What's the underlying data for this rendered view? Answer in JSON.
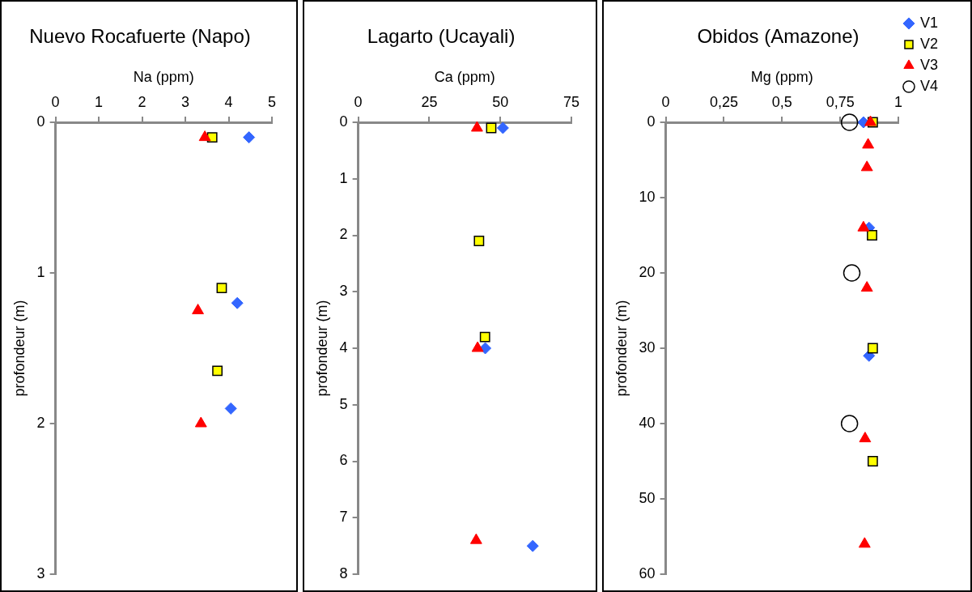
{
  "chart_data": [
    {
      "type": "scatter",
      "title": "Nuevo Rocafuerte (Napo)",
      "xlabel": "Na (ppm)",
      "ylabel": "profondeur (m)",
      "xlim": [
        0,
        5
      ],
      "xticks": [
        0,
        1,
        2,
        3,
        4,
        5
      ],
      "ylim": [
        3,
        0
      ],
      "yticks": [
        0,
        1,
        2,
        3
      ],
      "grid": false,
      "legend": false,
      "series": [
        {
          "color": "#3366ff",
          "marker": "diamond",
          "x": [
            4.47,
            4.2,
            4.05
          ],
          "values": [
            0.1,
            1.2,
            1.9
          ]
        },
        {
          "color": "#ffff00",
          "marker": "square",
          "x": [
            3.62,
            3.84,
            3.74
          ],
          "values": [
            0.1,
            1.1,
            1.65
          ]
        },
        {
          "color": "#ff0000",
          "marker": "triangle",
          "x": [
            3.45,
            3.29,
            3.36
          ],
          "values": [
            0.1,
            1.25,
            2.0
          ]
        }
      ]
    },
    {
      "type": "scatter",
      "title": "Lagarto (Ucayali)",
      "xlabel": "Ca (ppm)",
      "ylabel": "profondeur (m)",
      "xlim": [
        0,
        75
      ],
      "xticks": [
        0,
        25,
        50,
        75
      ],
      "ylim": [
        8,
        0
      ],
      "yticks": [
        0,
        1,
        2,
        3,
        4,
        5,
        6,
        7,
        8
      ],
      "grid": false,
      "legend": false,
      "series": [
        {
          "color": "#3366ff",
          "marker": "diamond",
          "x": [
            50.9,
            44.7,
            61.4
          ],
          "values": [
            0.1,
            4.0,
            7.5
          ]
        },
        {
          "color": "#ffff00",
          "marker": "square",
          "x": [
            46.8,
            42.5,
            44.6
          ],
          "values": [
            0.1,
            2.1,
            3.8
          ]
        },
        {
          "color": "#ff0000",
          "marker": "triangle",
          "x": [
            41.8,
            42.0,
            41.5
          ],
          "values": [
            0.1,
            4.0,
            7.4
          ]
        }
      ]
    },
    {
      "type": "scatter",
      "title": "Obidos (Amazone)",
      "xlabel": "Mg (ppm)",
      "ylabel": "profondeur (m)",
      "xlim": [
        0,
        1
      ],
      "xticks": [
        0,
        {
          "value": 0.25,
          "label": "0,25"
        },
        {
          "value": 0.5,
          "label": "0,5"
        },
        {
          "value": 0.75,
          "label": "0,75"
        },
        1
      ],
      "ylim": [
        60,
        0
      ],
      "yticks": [
        0,
        10,
        20,
        30,
        40,
        50,
        60
      ],
      "grid": false,
      "legend": "right",
      "series": [
        {
          "name": "V1",
          "color": "#3366ff",
          "marker": "diamond",
          "x": [
            0.85,
            0.874,
            0.874
          ],
          "values": [
            0,
            14,
            31
          ]
        },
        {
          "name": "V2",
          "color": "#ffff00",
          "marker": "square",
          "x": [
            0.89,
            0.887,
            0.89,
            0.89
          ],
          "values": [
            0,
            15,
            30,
            45
          ]
        },
        {
          "name": "V3",
          "color": "#ff0000",
          "marker": "triangle",
          "x": [
            0.88,
            0.87,
            0.865,
            0.85,
            0.865,
            0.857,
            0.855
          ],
          "values": [
            0,
            3,
            6,
            14,
            22,
            42,
            56
          ]
        },
        {
          "name": "V4",
          "color": "#000000",
          "marker": "circle",
          "x": [
            0.79,
            0.8,
            0.79
          ],
          "values": [
            0,
            20,
            40
          ]
        }
      ]
    }
  ]
}
